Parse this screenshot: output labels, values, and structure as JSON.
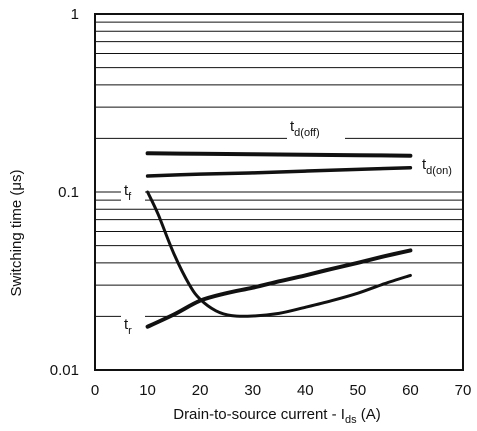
{
  "chart_data": {
    "type": "line",
    "xlabel": {
      "main": "Drain-to-source current - I",
      "sub": "ds",
      "unit": " (A)"
    },
    "ylabel": "Switching time (μs)",
    "xlim": [
      0,
      70
    ],
    "ylim": [
      0.01,
      1
    ],
    "y_scale": "log",
    "x_ticks": [
      "0",
      "10",
      "20",
      "30",
      "40",
      "50",
      "60",
      "70"
    ],
    "y_ticks": [
      "0.01",
      "0.1",
      "1"
    ],
    "grid": "horizontal",
    "series": [
      {
        "name": "t_d(off)",
        "label_main": "t",
        "label_sub": "d(off)",
        "x": [
          10,
          20,
          30,
          40,
          50,
          60
        ],
        "y": [
          0.165,
          0.164,
          0.163,
          0.162,
          0.161,
          0.16
        ]
      },
      {
        "name": "t_d(on)",
        "label_main": "t",
        "label_sub": "d(on)",
        "x": [
          10,
          20,
          30,
          40,
          50,
          60
        ],
        "y": [
          0.123,
          0.126,
          0.128,
          0.131,
          0.134,
          0.137
        ]
      },
      {
        "name": "t_f",
        "label_main": "t",
        "label_sub": "f",
        "x": [
          10,
          12,
          15,
          18,
          20,
          23,
          26,
          30,
          35,
          40,
          45,
          50,
          55,
          60
        ],
        "y": [
          0.1,
          0.075,
          0.045,
          0.03,
          0.025,
          0.0215,
          0.0202,
          0.0201,
          0.0208,
          0.0225,
          0.0245,
          0.027,
          0.0305,
          0.034
        ]
      },
      {
        "name": "t_r",
        "label_main": "t",
        "label_sub": "r",
        "x": [
          10,
          15,
          20,
          25,
          30,
          35,
          40,
          45,
          50,
          55,
          60
        ],
        "y": [
          0.0175,
          0.0205,
          0.0245,
          0.027,
          0.029,
          0.0315,
          0.034,
          0.037,
          0.04,
          0.0435,
          0.047
        ]
      }
    ]
  }
}
